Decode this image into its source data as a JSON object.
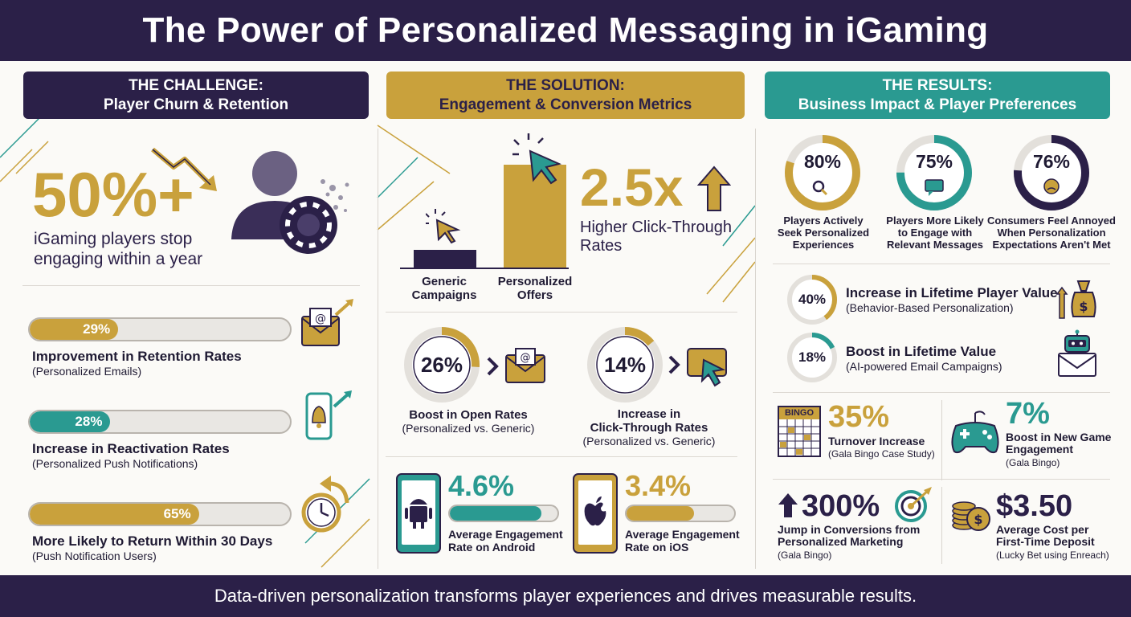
{
  "header": {
    "title": "The Power of Personalized Messaging in iGaming"
  },
  "footer": {
    "text": "Data-driven personalization transforms player experiences and drives measurable results."
  },
  "colors": {
    "navy": "#2b2048",
    "gold": "#c9a13c",
    "teal": "#2a9a91",
    "track": "#e9e7e3"
  },
  "challenge": {
    "heading_line1": "THE CHALLENGE:",
    "heading_line2": "Player Churn & Retention",
    "hero_value": "50%+",
    "hero_text_line1": "iGaming players stop",
    "hero_text_line2": "engaging within a year",
    "bars": [
      {
        "value": "29%",
        "fraction": 0.29,
        "title": "Improvement in Retention Rates",
        "sub": "(Personalized Emails)",
        "icon": "email-growth-icon"
      },
      {
        "value": "28%",
        "fraction": 0.28,
        "title": "Increase in Reactivation Rates",
        "sub": "(Personalized Push Notifications)",
        "icon": "phone-bell-icon"
      },
      {
        "value": "65%",
        "fraction": 0.65,
        "title": "More Likely to Return Within 30 Days",
        "sub": "(Push Notification Users)",
        "icon": "clock-return-icon"
      }
    ]
  },
  "solution": {
    "heading_line1": "THE SOLUTION:",
    "heading_line2": "Engagement & Conversion Metrics",
    "bar_compare": {
      "generic_label_line1": "Generic",
      "generic_label_line2": "Campaigns",
      "personalized_label_line1": "Personalized",
      "personalized_label_line2": "Offers",
      "multiplier": "2.5x",
      "multiplier_text_line1": "Higher Click-Through",
      "multiplier_text_line2": "Rates"
    },
    "rings": [
      {
        "value": "26%",
        "fraction": 0.26,
        "title": "Boost in Open Rates",
        "sub": "(Personalized vs. Generic)",
        "icon": "email-icon"
      },
      {
        "value": "14%",
        "fraction": 0.14,
        "title_line1": "Increase in",
        "title_line2": "Click-Through Rates",
        "sub": "(Personalized vs. Generic)",
        "icon": "click-icon"
      }
    ],
    "platforms": [
      {
        "value": "4.6%",
        "fraction": 0.85,
        "label_line1": "Average Engagement",
        "label_line2": "Rate on Android",
        "icon": "android-phone-icon"
      },
      {
        "value": "3.4%",
        "fraction": 0.63,
        "label_line1": "Average Engagement",
        "label_line2": "Rate on iOS",
        "icon": "apple-phone-icon"
      }
    ]
  },
  "results": {
    "heading_line1": "THE RESULTS:",
    "heading_line2": "Business Impact & Player Preferences",
    "rings": [
      {
        "value": "80%",
        "fraction": 0.8,
        "label_line1": "Players Actively",
        "label_line2": "Seek Personalized",
        "label_line3": "Experiences",
        "icon": "magnifier-icon"
      },
      {
        "value": "75%",
        "fraction": 0.75,
        "label_line1": "Players More Likely",
        "label_line2": "to Engage with",
        "label_line3": "Relevant Messages",
        "icon": "chat-icon"
      },
      {
        "value": "76%",
        "fraction": 0.76,
        "label_line1": "Consumers Feel Annoyed",
        "label_line2": "When Personalization",
        "label_line3": "Expectations Aren't Met",
        "icon": "annoyed-face-icon"
      }
    ],
    "value_rows": [
      {
        "value": "40%",
        "fraction": 0.4,
        "title": "Increase in Lifetime Player Value",
        "sub": "(Behavior-Based Personalization)",
        "icon": "money-bag-icon"
      },
      {
        "value": "18%",
        "fraction": 0.18,
        "title": "Boost in Lifetime Value",
        "sub": "(AI-powered Email Campaigns)",
        "icon": "robot-email-icon"
      }
    ],
    "bingo": {
      "grid_title": "BINGO",
      "value": "35%",
      "title": "Turnover Increase",
      "sub": "(Gala Bingo Case Study)"
    },
    "game": {
      "value": "7%",
      "title_line1": "Boost in New Game",
      "title_line2": "Engagement",
      "sub": "(Gala Bingo)"
    },
    "conversions": {
      "value": "300%",
      "title_line1": "Jump in Conversions from",
      "title_line2": "Personalized Marketing",
      "sub": "(Gala Bingo)"
    },
    "cost": {
      "value": "$3.50",
      "title_line1": "Average Cost per",
      "title_line2": "First-Time Deposit",
      "sub": "(Lucky Bet using Enreach)"
    }
  }
}
